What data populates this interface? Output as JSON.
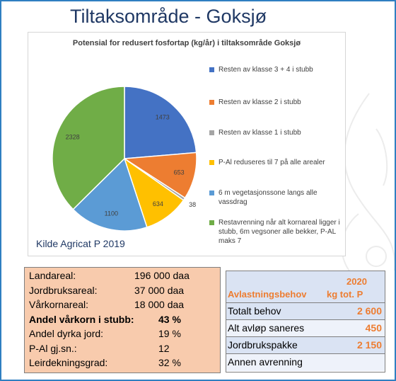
{
  "slide": {
    "title": "Tiltaksområde - Goksjø"
  },
  "chart": {
    "source": "Kilde Agricat P 2019"
  },
  "chart_data": {
    "type": "pie",
    "title": "Potensial for redusert fosfortap (kg/år) i tiltaksområde Goksjø",
    "start_angle_deg": 0,
    "direction": "clockwise",
    "legend_position": "right",
    "slices": [
      {
        "label": "Resten av klasse 3 + 4 i stubb",
        "value": 1473,
        "color": "#4472c4"
      },
      {
        "label": "Resten av klasse 2 i stubb",
        "value": 653,
        "color": "#ed7d31"
      },
      {
        "label": "Resten av klasse 1 i stubb",
        "value": 38,
        "color": "#a5a5a5"
      },
      {
        "label": "P-Al reduseres til 7 på alle arealer",
        "value": 634,
        "color": "#ffc000"
      },
      {
        "label": "6 m vegetasjonssone langs alle vassdrag",
        "value": 1100,
        "color": "#5b9bd5"
      },
      {
        "label": "Restavrenning når alt kornareal ligger i stubb, 6m vegsoner alle bekker, P-AL maks 7",
        "value": 2328,
        "color": "#70ad47"
      }
    ]
  },
  "stats": {
    "rows": [
      {
        "label": "Landareal:",
        "value": "196 000 daa"
      },
      {
        "label": "Jordbruksareal:",
        "value": "37 000 daa"
      },
      {
        "label": "Vårkornareal:",
        "value": "18 000 daa"
      },
      {
        "label": "Andel vårkorn i stubb:",
        "value": "43 %"
      },
      {
        "label": "Andel dyrka jord:",
        "value": "19 %"
      },
      {
        "label": "P-Al gj.sn.:",
        "value": "12"
      },
      {
        "label": "Leirdekningsgrad:",
        "value": "32 %"
      }
    ]
  },
  "relief": {
    "header_label": "Avlastningsbehov",
    "header_year": "2020",
    "header_unit": "kg tot. P",
    "rows": [
      {
        "label": "Totalt behov",
        "value": "2 600"
      },
      {
        "label": "Alt avløp saneres",
        "value": "450"
      },
      {
        "label": "Jordbrukspakke",
        "value": "2 150"
      },
      {
        "label": "Annen avrenning",
        "value": ""
      }
    ]
  }
}
